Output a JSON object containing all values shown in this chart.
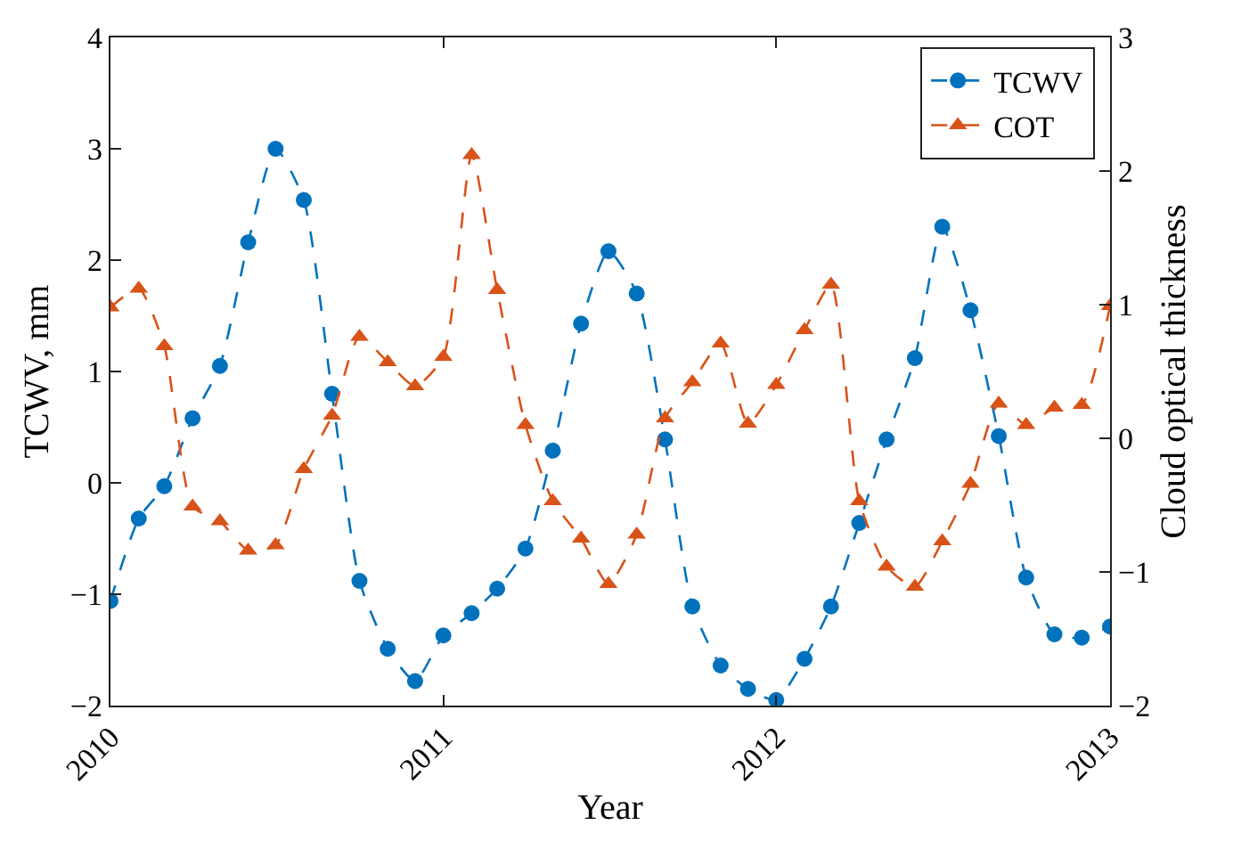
{
  "chart_data": {
    "type": "line",
    "xlabel": "Year",
    "ylabel": "TCWV, mm",
    "y2label": "Cloud optical thickness",
    "x": [
      "2010-01",
      "2010-02",
      "2010-03",
      "2010-04",
      "2010-05",
      "2010-06",
      "2010-07",
      "2010-08",
      "2010-09",
      "2010-10",
      "2010-11",
      "2010-12",
      "2011-01",
      "2011-02",
      "2011-03",
      "2011-04",
      "2011-05",
      "2011-06",
      "2011-07",
      "2011-08",
      "2011-09",
      "2011-10",
      "2011-11",
      "2011-12",
      "2012-01",
      "2012-02",
      "2012-03",
      "2012-04",
      "2012-05",
      "2012-06",
      "2012-07",
      "2012-08",
      "2012-09",
      "2012-10",
      "2012-11",
      "2012-12",
      "2013-01"
    ],
    "series": [
      {
        "name": "TCWV",
        "color": "#0072bd",
        "marker": "circle",
        "values": [
          -1.06,
          -0.32,
          -0.03,
          0.58,
          1.05,
          2.16,
          3.0,
          2.54,
          0.8,
          -0.88,
          -1.49,
          -1.78,
          -1.37,
          -1.17,
          -0.95,
          -0.59,
          0.29,
          1.43,
          2.08,
          1.7,
          0.39,
          -1.11,
          -1.64,
          -1.85,
          -1.95,
          -1.58,
          -1.11,
          -0.36,
          0.39,
          1.12,
          2.3,
          1.55,
          0.42,
          -0.85,
          -1.36,
          -1.39,
          -1.29
        ]
      },
      {
        "name": "COT",
        "color": "#d95319",
        "marker": "triangle",
        "axis": "y2",
        "values": [
          0.98,
          1.12,
          0.69,
          -0.51,
          -0.62,
          -0.84,
          -0.8,
          -0.23,
          0.17,
          0.76,
          0.57,
          0.39,
          0.61,
          2.12,
          1.11,
          0.1,
          -0.47,
          -0.75,
          -1.09,
          -0.72,
          0.15,
          0.42,
          0.71,
          0.11,
          0.4,
          0.81,
          1.15,
          -0.47,
          -0.96,
          -1.11,
          -0.77,
          -0.34,
          0.26,
          0.1,
          0.23,
          0.25,
          0.99
        ]
      }
    ],
    "xlim": [
      "2010-01",
      "2013-01"
    ],
    "xticks": [
      "2010",
      "2011",
      "2012",
      "2013"
    ],
    "ylim": [
      -2,
      4
    ],
    "yticks": [
      -2,
      -1,
      0,
      1,
      2,
      3,
      4
    ],
    "y2lim": [
      -2,
      3
    ],
    "y2ticks": [
      -2,
      -1,
      0,
      1,
      2,
      3
    ],
    "line_style": "dashed",
    "legend": "top right"
  }
}
